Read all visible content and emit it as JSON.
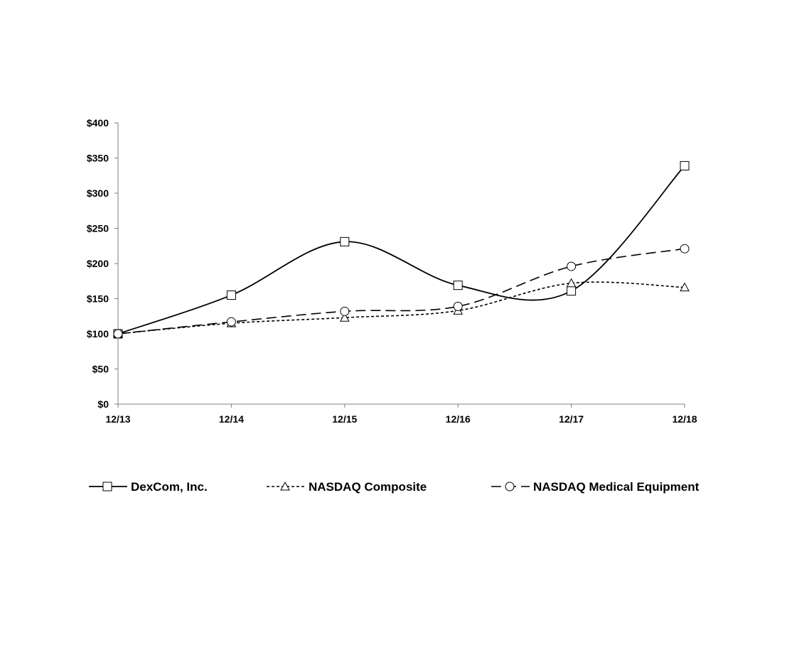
{
  "chart_data": {
    "type": "line",
    "title": "",
    "xlabel": "",
    "ylabel": "",
    "categories": [
      "12/13",
      "12/14",
      "12/15",
      "12/16",
      "12/17",
      "12/18"
    ],
    "y_ticks": [
      "$0",
      "$50",
      "$100",
      "$150",
      "$200",
      "$250",
      "$300",
      "$350",
      "$400"
    ],
    "ylim": [
      0,
      400
    ],
    "grid": false,
    "legend_position": "bottom",
    "series": [
      {
        "name": "DexCom, Inc.",
        "values": [
          100,
          155,
          231,
          169,
          161,
          339
        ],
        "marker": "square",
        "line": "solid"
      },
      {
        "name": "NASDAQ Composite",
        "values": [
          100,
          115,
          123,
          133,
          172,
          166
        ],
        "marker": "triangle",
        "line": "dotted"
      },
      {
        "name": "NASDAQ Medical Equipment",
        "values": [
          100,
          117,
          132,
          139,
          196,
          221
        ],
        "marker": "circle",
        "line": "dashed"
      }
    ]
  }
}
